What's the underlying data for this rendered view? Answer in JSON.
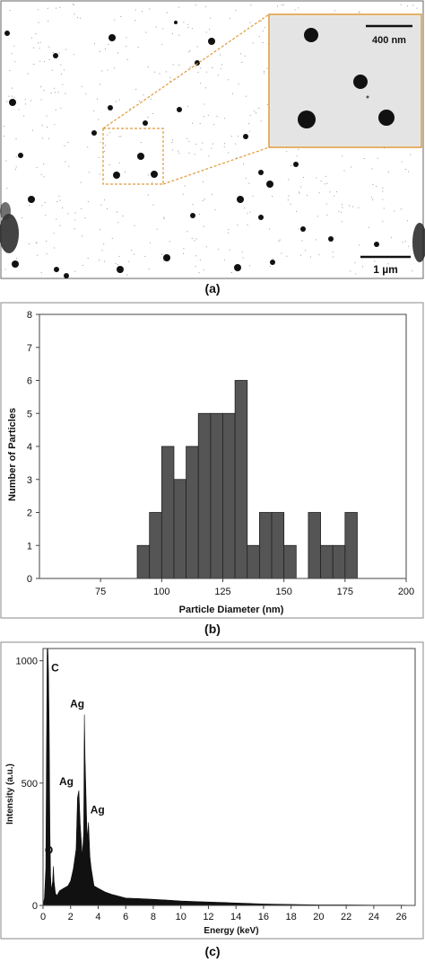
{
  "panel_a": {
    "caption": "(a)",
    "scalebar_main": "1 µm",
    "scalebar_inset": "400 nm",
    "colors": {
      "particle": "#111111",
      "inset_border": "#e09a3a",
      "background": "#ffffff"
    }
  },
  "panel_b": {
    "caption": "(b)"
  },
  "panel_c": {
    "caption": "(c)"
  },
  "chart_data": [
    {
      "type": "bar",
      "xlabel": "Particle Diameter (nm)",
      "ylabel": "Number of Particles",
      "xlim": [
        50,
        200
      ],
      "ylim": [
        0,
        8
      ],
      "xticks": [
        "75",
        "100",
        "125",
        "150",
        "175",
        "200"
      ],
      "yticks": [
        "0",
        "1",
        "2",
        "3",
        "4",
        "5",
        "6",
        "7",
        "8"
      ],
      "bin_width": 5,
      "bin_starts": [
        90,
        95,
        100,
        105,
        110,
        115,
        120,
        125,
        130,
        135,
        140,
        145,
        150,
        155,
        160,
        165,
        170,
        175
      ],
      "values": [
        1,
        2,
        4,
        3,
        4,
        5,
        5,
        5,
        6,
        1,
        2,
        2,
        1,
        0,
        2,
        1,
        1,
        2
      ],
      "bar_color": "#555555"
    },
    {
      "type": "area",
      "xlabel": "Energy (keV)",
      "ylabel": "Intensity (a.u.)",
      "xlim": [
        0,
        27
      ],
      "ylim": [
        0,
        1050
      ],
      "xticks": [
        "0",
        "2",
        "4",
        "6",
        "8",
        "10",
        "12",
        "14",
        "16",
        "18",
        "20",
        "22",
        "24",
        "26"
      ],
      "yticks": [
        "0",
        "500",
        "1000"
      ],
      "x": [
        0.0,
        0.1,
        0.2,
        0.25,
        0.3,
        0.35,
        0.4,
        0.45,
        0.5,
        0.55,
        0.6,
        0.7,
        0.75,
        0.8,
        0.9,
        1.0,
        1.2,
        1.5,
        1.8,
        2.0,
        2.2,
        2.4,
        2.5,
        2.6,
        2.7,
        2.85,
        2.95,
        3.0,
        3.05,
        3.15,
        3.2,
        3.3,
        3.4,
        3.5,
        3.7,
        4.0,
        4.5,
        5.0,
        6.0,
        7.0,
        8.0,
        9.0,
        10.0,
        11.0,
        12.0,
        13.0,
        14.0,
        15.0,
        16.0,
        17.0,
        18.0,
        19.0,
        20.0,
        22.0,
        24.0,
        26.0,
        27.0
      ],
      "y": [
        0,
        30,
        150,
        600,
        1050,
        1050,
        950,
        700,
        300,
        120,
        60,
        100,
        160,
        100,
        50,
        40,
        60,
        70,
        80,
        100,
        150,
        230,
        440,
        470,
        330,
        200,
        300,
        780,
        600,
        380,
        270,
        340,
        200,
        150,
        80,
        70,
        55,
        45,
        30,
        28,
        25,
        22,
        18,
        16,
        14,
        12,
        10,
        8,
        6,
        5,
        4,
        3,
        2,
        2,
        1,
        1,
        0
      ],
      "annotations": [
        {
          "label": "C",
          "x": 0.35,
          "y": 1000
        },
        {
          "label": "O",
          "x": 0.55,
          "y": 160
        },
        {
          "label": "Ag",
          "x": 2.6,
          "y": 470
        },
        {
          "label": "Ag",
          "x": 3.0,
          "y": 780
        },
        {
          "label": "Ag",
          "x": 3.3,
          "y": 340
        }
      ],
      "fill_color": "#111111"
    }
  ]
}
